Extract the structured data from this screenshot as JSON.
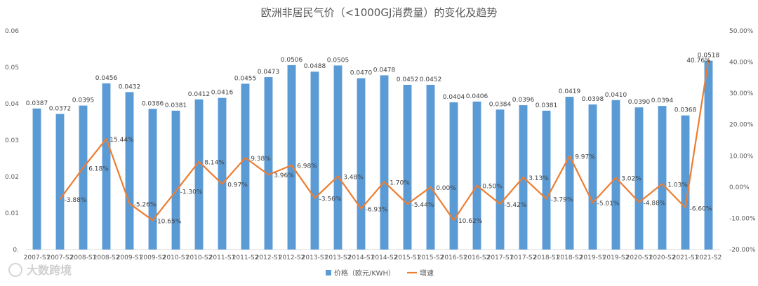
{
  "chart_data": {
    "type": "bar",
    "title": "欧洲非居民气价（<1000GJ消费量）的变化及趋势",
    "categories": [
      "2007-S1",
      "2007-S2",
      "2008-S1",
      "2008-S2",
      "2009-S1",
      "2009-S2",
      "2010-S1",
      "2010-S2",
      "2011-S1",
      "2011-S2",
      "2012-S1",
      "2012-S2",
      "2013-S1",
      "2013-S2",
      "2014-S1",
      "2014-S2",
      "2015-S1",
      "2015-S2",
      "2016-S1",
      "2016-S2",
      "2017-S1",
      "2017-S2",
      "2018-S1",
      "2018-S2",
      "2019-S1",
      "2019-S2",
      "2020-S1",
      "2020-S2",
      "2021-S1",
      "2021-S2"
    ],
    "xtick_labels": [
      "2007-S1",
      "2007-S2",
      "2008-S1",
      "2008-S2",
      "2009-S1",
      "2009-S2",
      "2010-S1",
      "2010-S2",
      "2011-S1",
      "2011-S2",
      "2012-S1",
      "2012-S2",
      "2013-S1",
      "2013-S2",
      "2014-S1",
      "2014-S2",
      "2015-S1",
      "2015-S2",
      "2016-S1",
      "2016-S2",
      "2017-S1",
      "2017-S2",
      "2018-S1",
      "2018-S2",
      "2019-S1",
      "2019-S2",
      "2020-S1",
      "2020-S2",
      "2021-S1",
      "2021-S2"
    ],
    "series": [
      {
        "name": "价格（欧元/KWH）",
        "type": "bar",
        "axis": "left",
        "color": "#5b9bd5",
        "values": [
          0.0387,
          0.0372,
          0.0395,
          0.0456,
          0.0432,
          0.0386,
          0.0381,
          0.0412,
          0.0416,
          0.0455,
          0.0473,
          0.0506,
          0.0488,
          0.0505,
          0.047,
          0.0478,
          0.0452,
          0.0452,
          0.0404,
          0.0406,
          0.0384,
          0.0396,
          0.0381,
          0.0419,
          0.0398,
          0.041,
          0.039,
          0.0394,
          0.0368,
          0.0518
        ],
        "labels": [
          "0.0387",
          "0.0372",
          "0.0395",
          "0.0456",
          "0.0432",
          "0.0386",
          "0.0381",
          "0.0412",
          "0.0416",
          "0.0455",
          "0.0473",
          "0.0506",
          "0.0488",
          "0.0505",
          "0.0470",
          "0.0478",
          "0.0452",
          "0.0452",
          "0.0404",
          "0.0406",
          "0.0384",
          "0.0396",
          "0.0381",
          "0.0419",
          "0.0398",
          "0.0410",
          "0.0390",
          "0.0394",
          "0.0368",
          "0.0518"
        ]
      },
      {
        "name": "增速",
        "type": "line",
        "axis": "right",
        "color": "#ed7d31",
        "values": [
          null,
          -3.88,
          6.18,
          15.44,
          -5.26,
          -10.65,
          -1.3,
          8.14,
          0.97,
          9.38,
          3.96,
          6.98,
          -3.56,
          3.48,
          -6.93,
          1.7,
          -5.44,
          0.0,
          -10.62,
          0.5,
          -5.42,
          3.13,
          -3.79,
          9.97,
          -5.01,
          3.02,
          -4.88,
          1.03,
          -6.6,
          40.76
        ],
        "labels": [
          null,
          "-3.88%",
          "6.18%",
          "15.44%",
          "-5.26%",
          "-10.65%",
          "-1.30%",
          "8.14%",
          "0.97%",
          "9.38%",
          "3.96%",
          "6.98%",
          "-3.56%",
          "3.48%",
          "-6.93%",
          "1.70%",
          "-5.44%",
          "0.00%",
          "-10.62%",
          "0.50%",
          "-5.42%",
          "3.13%",
          "-3.79%",
          "9.97%",
          "-5.01%",
          "3.02%",
          "-4.88%",
          "1.03%",
          "-6.60%",
          "40.76%"
        ]
      }
    ],
    "left_axis": {
      "min": 0,
      "max": 0.06,
      "ticks": [
        0,
        0.01,
        0.02,
        0.03,
        0.04,
        0.05,
        0.06
      ],
      "tick_labels": [
        "0.",
        "0.01",
        "0.02",
        "0.03",
        "0.04",
        "0.05",
        "0.06"
      ]
    },
    "right_axis": {
      "min": -20,
      "max": 50,
      "ticks": [
        -20,
        -10,
        0,
        10,
        20,
        30,
        40,
        50
      ],
      "tick_labels": [
        "-20.00%",
        "-10.00%",
        "0.00%",
        "10.00%",
        "20.00%",
        "30.00%",
        "40.00%",
        "50.00%"
      ]
    },
    "legend": {
      "position": "bottom",
      "entries": [
        "价格（欧元/KWH）",
        "增速"
      ]
    },
    "grid": false
  },
  "watermark": {
    "text": "大数跨境"
  }
}
